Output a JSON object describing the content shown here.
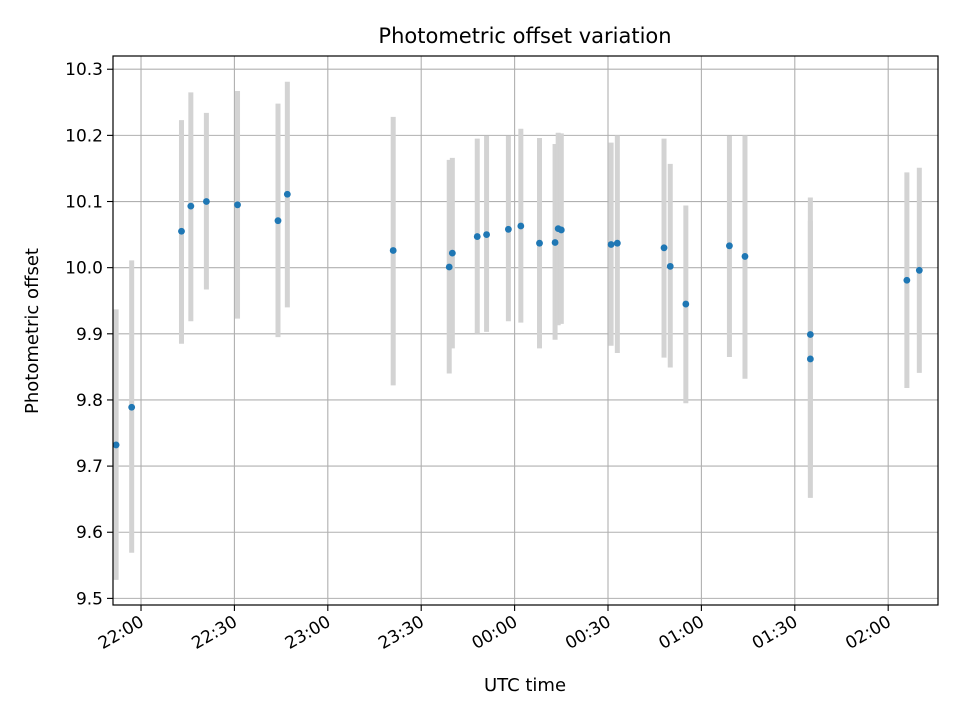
{
  "chart_data": {
    "type": "scatter",
    "title": "Photometric offset variation",
    "xlabel": "UTC time",
    "ylabel": "Photometric offset",
    "grid": true,
    "legend": "none",
    "xlim": [
      "21:51",
      "02:16"
    ],
    "ylim": [
      9.49,
      10.32
    ],
    "x_ticks": [
      "22:00",
      "22:30",
      "23:00",
      "23:30",
      "00:00",
      "00:30",
      "01:00",
      "01:30",
      "02:00"
    ],
    "y_ticks": [
      "9.5",
      "9.6",
      "9.7",
      "9.8",
      "9.9",
      "10.0",
      "10.1",
      "10.2",
      "10.3"
    ],
    "colors": {
      "points": "#1f77b4",
      "errorbars": "#d3d3d3",
      "grid": "#b0b0b0"
    },
    "points": [
      {
        "x": "21:52",
        "y": 9.732,
        "ylow": 9.528,
        "yhigh": 9.937
      },
      {
        "x": "21:57",
        "y": 9.789,
        "ylow": 9.569,
        "yhigh": 10.011
      },
      {
        "x": "22:13",
        "y": 10.055,
        "ylow": 9.885,
        "yhigh": 10.223
      },
      {
        "x": "22:16",
        "y": 10.093,
        "ylow": 9.919,
        "yhigh": 10.265
      },
      {
        "x": "22:21",
        "y": 10.1,
        "ylow": 9.967,
        "yhigh": 10.234
      },
      {
        "x": "22:31",
        "y": 10.095,
        "ylow": 9.923,
        "yhigh": 10.267
      },
      {
        "x": "22:44",
        "y": 10.071,
        "ylow": 9.895,
        "yhigh": 10.248
      },
      {
        "x": "22:47",
        "y": 10.111,
        "ylow": 9.94,
        "yhigh": 10.281
      },
      {
        "x": "23:21",
        "y": 10.026,
        "ylow": 9.822,
        "yhigh": 10.228
      },
      {
        "x": "23:39",
        "y": 10.001,
        "ylow": 9.84,
        "yhigh": 10.163
      },
      {
        "x": "23:40",
        "y": 10.022,
        "ylow": 9.878,
        "yhigh": 10.166
      },
      {
        "x": "23:48",
        "y": 10.047,
        "ylow": 9.9,
        "yhigh": 10.195
      },
      {
        "x": "23:51",
        "y": 10.05,
        "ylow": 9.903,
        "yhigh": 10.199
      },
      {
        "x": "23:58",
        "y": 10.058,
        "ylow": 9.919,
        "yhigh": 10.199
      },
      {
        "x": "00:02",
        "y": 10.063,
        "ylow": 9.917,
        "yhigh": 10.21
      },
      {
        "x": "00:08",
        "y": 10.037,
        "ylow": 9.878,
        "yhigh": 10.196
      },
      {
        "x": "00:13",
        "y": 10.038,
        "ylow": 9.891,
        "yhigh": 10.187
      },
      {
        "x": "00:14",
        "y": 10.059,
        "ylow": 9.913,
        "yhigh": 10.204
      },
      {
        "x": "00:15",
        "y": 10.057,
        "ylow": 9.915,
        "yhigh": 10.203
      },
      {
        "x": "00:31",
        "y": 10.035,
        "ylow": 9.882,
        "yhigh": 10.189
      },
      {
        "x": "00:33",
        "y": 10.037,
        "ylow": 9.871,
        "yhigh": 10.2
      },
      {
        "x": "00:48",
        "y": 10.03,
        "ylow": 9.864,
        "yhigh": 10.195
      },
      {
        "x": "00:50",
        "y": 10.002,
        "ylow": 9.849,
        "yhigh": 10.157
      },
      {
        "x": "00:55",
        "y": 9.945,
        "ylow": 9.795,
        "yhigh": 10.094
      },
      {
        "x": "01:09",
        "y": 10.033,
        "ylow": 9.865,
        "yhigh": 10.199
      },
      {
        "x": "01:14",
        "y": 10.017,
        "ylow": 9.832,
        "yhigh": 10.2
      },
      {
        "x": "01:35",
        "y": 9.862,
        "ylow": 9.652,
        "yhigh": 10.071
      },
      {
        "x": "01:35",
        "y": 9.899,
        "ylow": 9.696,
        "yhigh": 10.106
      },
      {
        "x": "02:06",
        "y": 9.981,
        "ylow": 9.818,
        "yhigh": 10.144
      },
      {
        "x": "02:10",
        "y": 9.996,
        "ylow": 9.841,
        "yhigh": 10.151
      }
    ]
  }
}
